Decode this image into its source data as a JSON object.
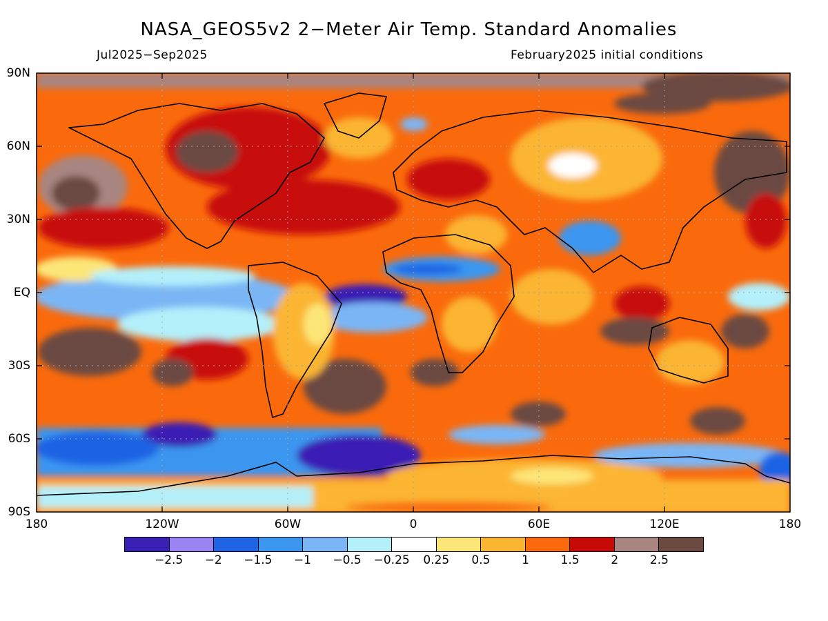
{
  "title": "NASA_GEOS5v2 2−Meter Air Temp. Standard Anomalies",
  "period": "Jul2025−Sep2025",
  "initial_conditions": "February2025 initial conditions",
  "y_ticks": [
    "90N",
    "60N",
    "30N",
    "EQ",
    "30S",
    "60S",
    "90S"
  ],
  "x_ticks": [
    "180",
    "120W",
    "60W",
    "0",
    "60E",
    "120E",
    "180"
  ],
  "colorbar": {
    "labels": [
      "−2.5",
      "−2",
      "−1.5",
      "−1",
      "−0.5",
      "−0.25",
      "0.25",
      "0.5",
      "1",
      "1.5",
      "2",
      "2.5"
    ],
    "colors": [
      "#3a1fb4",
      "#9a84f2",
      "#1f64e4",
      "#3b96f0",
      "#7ab6f6",
      "#b4f0fa",
      "#ffffff",
      "#fde678",
      "#fbb531",
      "#fa6a0c",
      "#c80a07",
      "#a88580",
      "#6b4a42"
    ]
  },
  "map_colors": {
    "land_outline": "#000000",
    "grid": "#a8a8a8"
  }
}
